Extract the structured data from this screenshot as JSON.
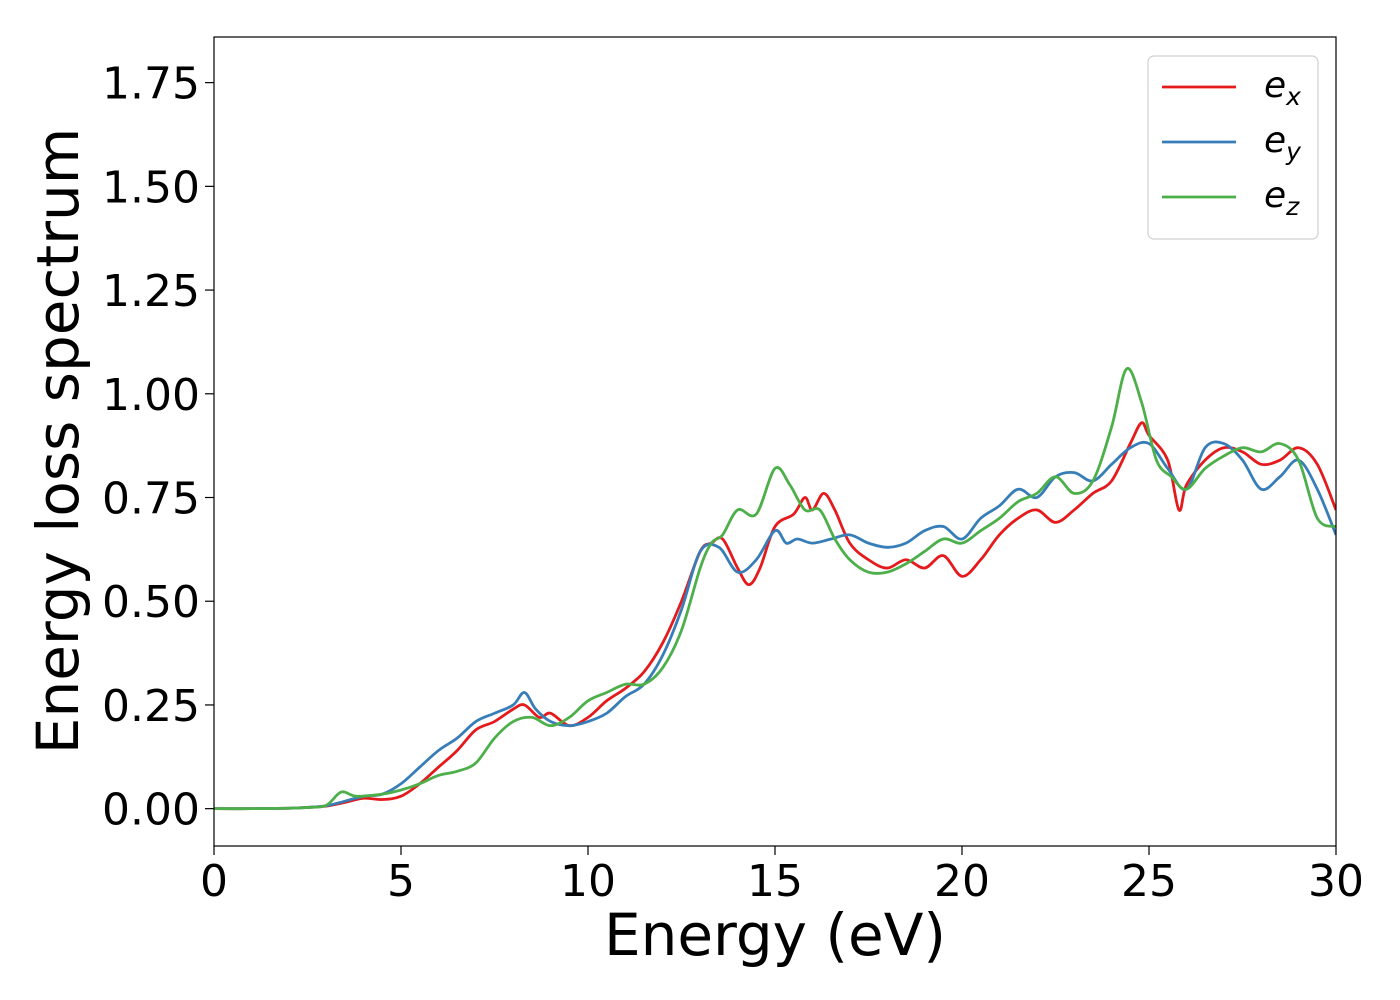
{
  "chart_data": {
    "type": "line",
    "title": "",
    "xlabel": "Energy (eV)",
    "ylabel": "Energy loss spectrum",
    "xlim": [
      0,
      30
    ],
    "ylim": [
      -0.09,
      1.86
    ],
    "xticks": [
      0,
      5,
      10,
      15,
      20,
      25,
      30
    ],
    "xtick_labels": [
      "0",
      "5",
      "10",
      "15",
      "20",
      "25",
      "30"
    ],
    "yticks": [
      0.0,
      0.25,
      0.5,
      0.75,
      1.0,
      1.25,
      1.5,
      1.75
    ],
    "ytick_labels": [
      "0.00",
      "0.25",
      "0.50",
      "0.75",
      "1.00",
      "1.25",
      "1.50",
      "1.75"
    ],
    "grid": false,
    "legend_position": "top-right",
    "series": [
      {
        "name": "e",
        "subscript": "x",
        "color": "#e41a1c",
        "x": [
          0,
          1,
          2,
          2.5,
          3,
          3.5,
          4,
          4.5,
          5,
          5.5,
          6,
          6.5,
          7,
          7.5,
          8,
          8.3,
          8.7,
          9,
          9.5,
          10,
          10.5,
          11,
          11.5,
          12,
          12.5,
          13,
          13.3,
          13.6,
          14,
          14.3,
          14.6,
          15,
          15.5,
          15.8,
          16,
          16.3,
          16.6,
          17,
          17.5,
          18,
          18.5,
          19,
          19.5,
          20,
          20.5,
          21,
          21.5,
          22,
          22.5,
          23,
          23.5,
          24,
          24.5,
          24.8,
          25,
          25.5,
          25.8,
          26,
          26.5,
          27,
          27.5,
          28,
          28.5,
          29,
          29.5,
          30
        ],
        "y": [
          0,
          0,
          0.001,
          0.003,
          0.006,
          0.015,
          0.025,
          0.022,
          0.03,
          0.06,
          0.1,
          0.14,
          0.19,
          0.21,
          0.24,
          0.25,
          0.22,
          0.23,
          0.2,
          0.22,
          0.26,
          0.29,
          0.33,
          0.4,
          0.5,
          0.62,
          0.64,
          0.65,
          0.58,
          0.54,
          0.58,
          0.68,
          0.71,
          0.75,
          0.72,
          0.76,
          0.72,
          0.64,
          0.6,
          0.58,
          0.6,
          0.58,
          0.61,
          0.56,
          0.6,
          0.66,
          0.7,
          0.72,
          0.69,
          0.72,
          0.76,
          0.79,
          0.88,
          0.93,
          0.9,
          0.84,
          0.72,
          0.78,
          0.84,
          0.87,
          0.86,
          0.83,
          0.84,
          0.87,
          0.83,
          0.72
        ]
      },
      {
        "name": "e",
        "subscript": "y",
        "color": "#377eb8",
        "x": [
          0,
          1,
          2,
          2.5,
          3,
          3.5,
          4,
          4.5,
          5,
          5.5,
          6,
          6.5,
          7,
          7.5,
          8,
          8.3,
          8.6,
          9,
          9.5,
          10,
          10.5,
          11,
          11.5,
          12,
          12.5,
          13,
          13.5,
          14,
          14.5,
          15,
          15.3,
          15.6,
          16,
          16.5,
          17,
          17.5,
          18,
          18.5,
          19,
          19.5,
          20,
          20.5,
          21,
          21.5,
          22,
          22.5,
          23,
          23.5,
          24,
          24.5,
          25,
          25.5,
          26,
          26.5,
          27,
          27.5,
          28,
          28.5,
          29,
          29.5,
          30
        ],
        "y": [
          0,
          0,
          0.001,
          0.003,
          0.007,
          0.018,
          0.03,
          0.035,
          0.06,
          0.1,
          0.14,
          0.17,
          0.21,
          0.23,
          0.25,
          0.28,
          0.24,
          0.21,
          0.2,
          0.21,
          0.23,
          0.27,
          0.3,
          0.37,
          0.48,
          0.62,
          0.63,
          0.57,
          0.6,
          0.67,
          0.64,
          0.65,
          0.64,
          0.65,
          0.66,
          0.64,
          0.63,
          0.64,
          0.67,
          0.68,
          0.65,
          0.7,
          0.73,
          0.77,
          0.75,
          0.8,
          0.81,
          0.79,
          0.83,
          0.87,
          0.88,
          0.82,
          0.77,
          0.87,
          0.88,
          0.84,
          0.77,
          0.8,
          0.84,
          0.77,
          0.66
        ]
      },
      {
        "name": "e",
        "subscript": "z",
        "color": "#4daf4a",
        "x": [
          0,
          1,
          2,
          2.5,
          3,
          3.4,
          3.8,
          4.5,
          5,
          5.5,
          6,
          6.5,
          7,
          7.5,
          8,
          8.5,
          9,
          9.5,
          10,
          10.5,
          11,
          11.5,
          12,
          12.5,
          13,
          13.3,
          13.6,
          14,
          14.5,
          15,
          15.4,
          15.8,
          16.2,
          16.6,
          17,
          17.5,
          18,
          18.5,
          19,
          19.5,
          20,
          20.5,
          21,
          21.5,
          22,
          22.5,
          23,
          23.5,
          24,
          24.4,
          24.8,
          25.2,
          25.6,
          26,
          26.5,
          27,
          27.5,
          28,
          28.5,
          29,
          29.5,
          30
        ],
        "y": [
          0,
          0,
          0.001,
          0.003,
          0.008,
          0.04,
          0.03,
          0.035,
          0.045,
          0.06,
          0.08,
          0.09,
          0.11,
          0.17,
          0.21,
          0.22,
          0.2,
          0.22,
          0.26,
          0.28,
          0.3,
          0.3,
          0.34,
          0.43,
          0.58,
          0.64,
          0.66,
          0.72,
          0.71,
          0.82,
          0.78,
          0.72,
          0.72,
          0.65,
          0.6,
          0.57,
          0.57,
          0.59,
          0.62,
          0.65,
          0.64,
          0.67,
          0.7,
          0.74,
          0.76,
          0.8,
          0.76,
          0.79,
          0.92,
          1.06,
          0.98,
          0.84,
          0.8,
          0.77,
          0.82,
          0.85,
          0.87,
          0.86,
          0.88,
          0.84,
          0.7,
          0.68
        ]
      }
    ]
  }
}
